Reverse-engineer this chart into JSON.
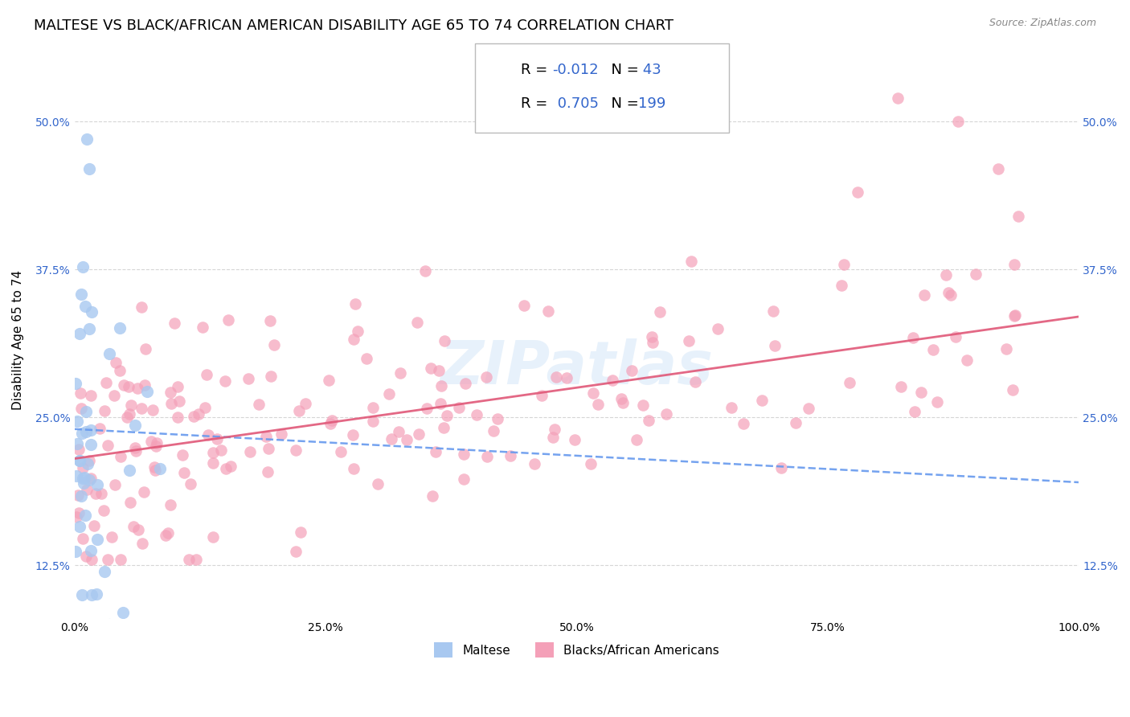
{
  "title": "MALTESE VS BLACK/AFRICAN AMERICAN DISABILITY AGE 65 TO 74 CORRELATION CHART",
  "source": "Source: ZipAtlas.com",
  "xlabel": "",
  "ylabel": "Disability Age 65 to 74",
  "xlim": [
    0,
    100
  ],
  "ylim": [
    8,
    55
  ],
  "xticks": [
    0,
    25,
    50,
    75,
    100
  ],
  "xtick_labels": [
    "0.0%",
    "25.0%",
    "50.0%",
    "75.0%",
    "100.0%"
  ],
  "yticks": [
    12.5,
    25.0,
    37.5,
    50.0
  ],
  "ytick_labels": [
    "12.5%",
    "25.0%",
    "37.5%",
    "50.0%"
  ],
  "legend1_R": "-0.012",
  "legend1_N": "43",
  "legend2_R": "0.705",
  "legend2_N": "199",
  "maltese_color": "#a8c8f0",
  "black_color": "#f4a0b8",
  "trendline_blue": "#6699ee",
  "trendline_pink": "#e05878",
  "watermark": "ZIPatlas",
  "grid_color": "#cccccc",
  "bg_color": "#ffffff",
  "title_fontsize": 13,
  "axis_label_fontsize": 11,
  "tick_fontsize": 10,
  "legend_fontsize": 13,
  "blue_trend_start_y": 24.0,
  "blue_trend_end_y": 19.5,
  "pink_trend_start_y": 21.5,
  "pink_trend_end_y": 33.5
}
